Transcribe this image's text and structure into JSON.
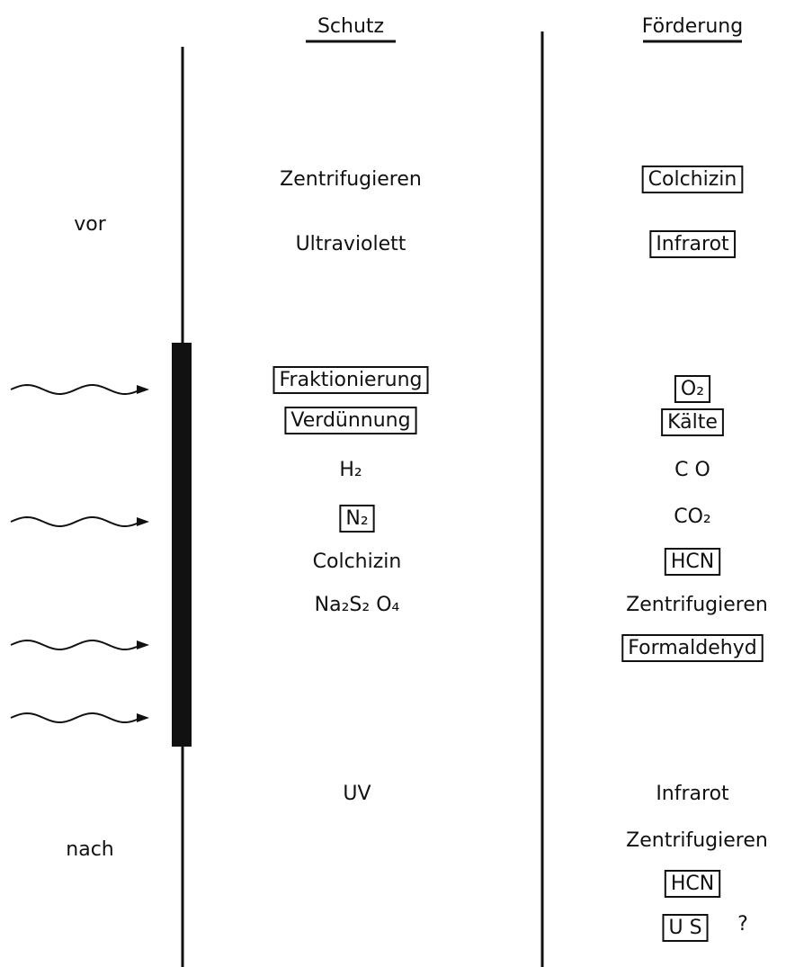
{
  "headers": {
    "schutz": "Schutz",
    "foerderung": "Förderung"
  },
  "rows": {
    "vor": "vor",
    "nach": "nach"
  },
  "schutz": [
    "Zentrifugieren",
    "Ultraviolett",
    "Fraktionierung",
    "Verdünnung",
    "H₂",
    "N₂",
    "Colchizin",
    "Na₂S₂ O₄",
    "UV"
  ],
  "foerderung": [
    "Colchizin",
    "Infrarot",
    "O₂",
    "Kälte",
    "C O",
    "CO₂",
    "HCN",
    "Zentrifugieren",
    "Formaldehyd",
    "Infrarot",
    "Zentrifugieren",
    "HCN",
    "U S"
  ],
  "question": "?"
}
